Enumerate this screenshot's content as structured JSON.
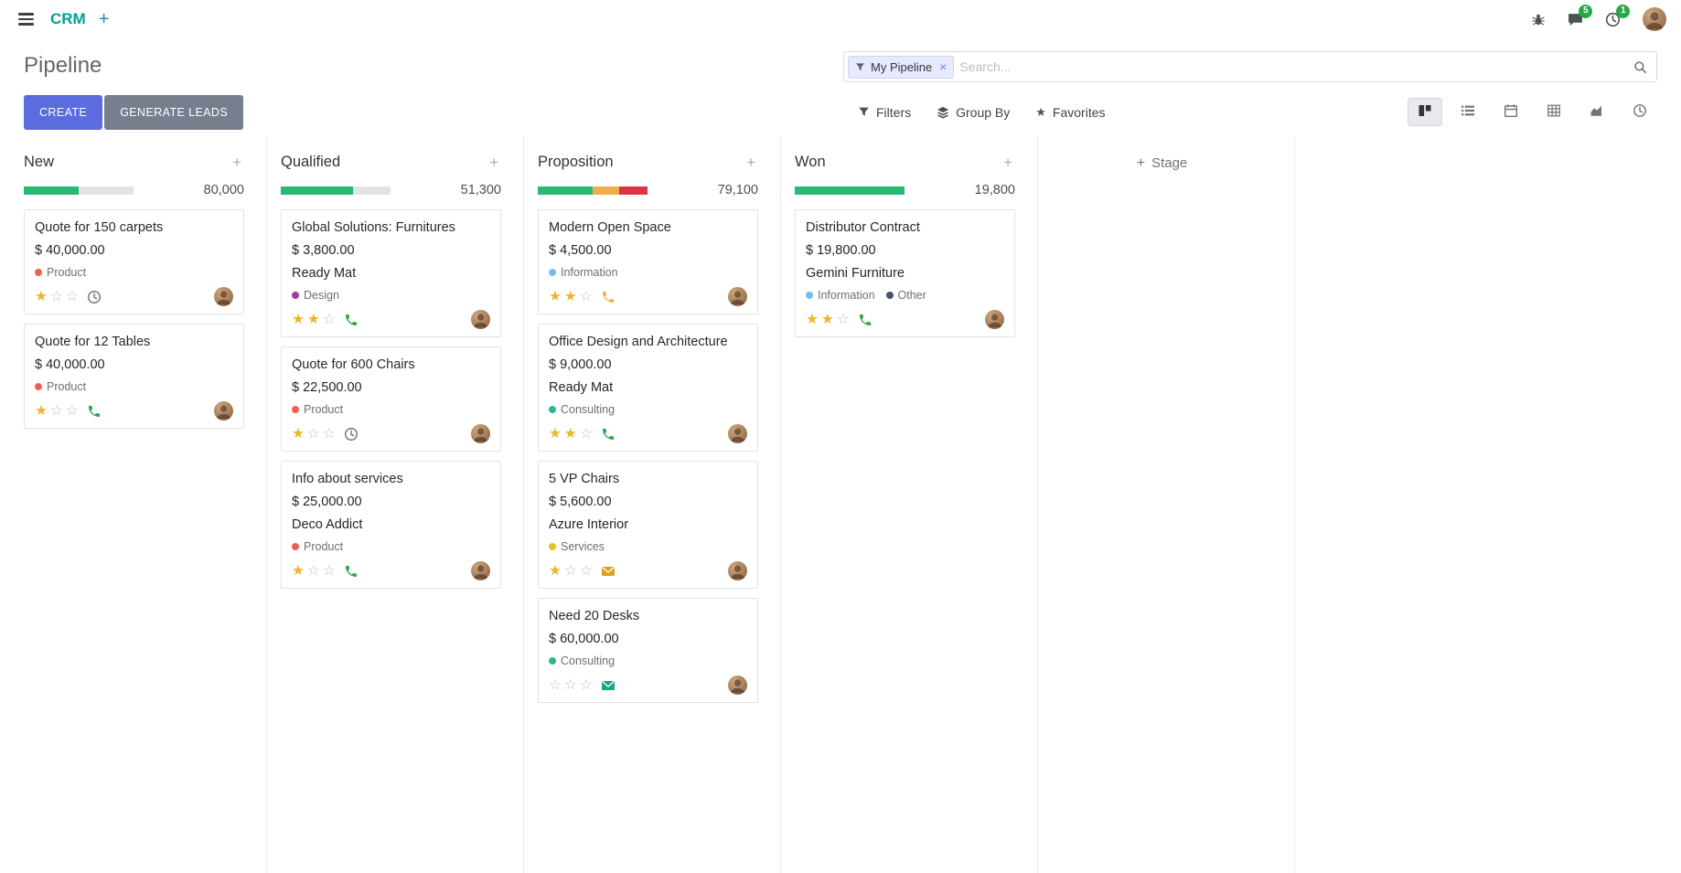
{
  "topbar": {
    "brand": "CRM",
    "messages_badge": "5",
    "activities_badge": "1"
  },
  "control_panel": {
    "title": "Pipeline",
    "search": {
      "facet_label": "My Pipeline",
      "remove_label": "×",
      "placeholder": "Search..."
    },
    "create_label": "CREATE",
    "generate_leads_label": "GENERATE LEADS",
    "filters_label": "Filters",
    "group_by_label": "Group By",
    "favorites_label": "Favorites"
  },
  "icons": {
    "plus": "+",
    "star_filled": "★",
    "star_empty": "☆",
    "favorites_star": "★"
  },
  "colors": {
    "brand": "#00A09D",
    "primary_button": "#5B6CDF",
    "secondary_button": "#777E8D",
    "badge": "#28a745",
    "star_filled": "#EFB428",
    "star_empty": "#B9BEC7"
  },
  "board": {
    "add_stage_label": "Stage",
    "columns": [
      {
        "name": "New",
        "total": "80,000",
        "progress": [
          {
            "color": "#29B974",
            "pct": 50
          },
          {
            "color": "#E2E3E5",
            "pct": 50
          }
        ],
        "cards": [
          {
            "title": "Quote for 150 carpets",
            "amount": "$ 40,000.00",
            "tags": [
              {
                "label": "Product",
                "color": "#F06050"
              }
            ],
            "stars": 1,
            "activity": {
              "type": "clock",
              "color": "#757C83"
            }
          },
          {
            "title": "Quote for 12 Tables",
            "amount": "$ 40,000.00",
            "tags": [
              {
                "label": "Product",
                "color": "#F06050"
              }
            ],
            "stars": 1,
            "activity": {
              "type": "phone",
              "color": "#28A745"
            }
          }
        ]
      },
      {
        "name": "Qualified",
        "total": "51,300",
        "progress": [
          {
            "color": "#29B974",
            "pct": 66
          },
          {
            "color": "#E2E3E5",
            "pct": 34
          }
        ],
        "cards": [
          {
            "title": "Global Solutions: Furnitures",
            "amount": "$ 3,800.00",
            "partner": "Ready Mat",
            "tags": [
              {
                "label": "Design",
                "color": "#A73A9B"
              }
            ],
            "stars": 2,
            "activity": {
              "type": "phone",
              "color": "#28A745"
            }
          },
          {
            "title": "Quote for 600 Chairs",
            "amount": "$ 22,500.00",
            "tags": [
              {
                "label": "Product",
                "color": "#F06050"
              }
            ],
            "stars": 1,
            "activity": {
              "type": "clock",
              "color": "#757C83"
            }
          },
          {
            "title": "Info about services",
            "amount": "$ 25,000.00",
            "partner": "Deco Addict",
            "tags": [
              {
                "label": "Product",
                "color": "#F06050"
              }
            ],
            "stars": 1,
            "activity": {
              "type": "phone",
              "color": "#28A745"
            }
          }
        ]
      },
      {
        "name": "Proposition",
        "total": "79,100",
        "progress": [
          {
            "color": "#29B974",
            "pct": 50
          },
          {
            "color": "#F0AD4E",
            "pct": 24
          },
          {
            "color": "#DC3545",
            "pct": 26
          }
        ],
        "cards": [
          {
            "title": "Modern Open Space",
            "amount": "$ 4,500.00",
            "tags": [
              {
                "label": "Information",
                "color": "#6CC1ED"
              }
            ],
            "stars": 2,
            "activity": {
              "type": "phone",
              "color": "#F0AD4E"
            }
          },
          {
            "title": "Office Design and Architecture",
            "amount": "$ 9,000.00",
            "partner": "Ready Mat",
            "tags": [
              {
                "label": "Consulting",
                "color": "#2BB78F"
              }
            ],
            "stars": 2,
            "activity": {
              "type": "phone",
              "color": "#28A745"
            }
          },
          {
            "title": "5 VP Chairs",
            "amount": "$ 5,600.00",
            "partner": "Azure Interior",
            "tags": [
              {
                "label": "Services",
                "color": "#E7C126"
              }
            ],
            "stars": 1,
            "activity": {
              "type": "envelope",
              "color": "#DFA024"
            }
          },
          {
            "title": "Need 20 Desks",
            "amount": "$ 60,000.00",
            "tags": [
              {
                "label": "Consulting",
                "color": "#2BB78F"
              }
            ],
            "stars": 0,
            "activity": {
              "type": "envelope",
              "color": "#18A689"
            }
          }
        ]
      },
      {
        "name": "Won",
        "total": "19,800",
        "progress": [
          {
            "color": "#29B974",
            "pct": 100
          }
        ],
        "cards": [
          {
            "title": "Distributor Contract",
            "amount": "$ 19,800.00",
            "partner": "Gemini Furniture",
            "tags": [
              {
                "label": "Information",
                "color": "#6CC1ED"
              },
              {
                "label": "Other",
                "color": "#43536B"
              }
            ],
            "stars": 2,
            "activity": {
              "type": "phone",
              "color": "#28A745"
            }
          }
        ]
      }
    ]
  }
}
